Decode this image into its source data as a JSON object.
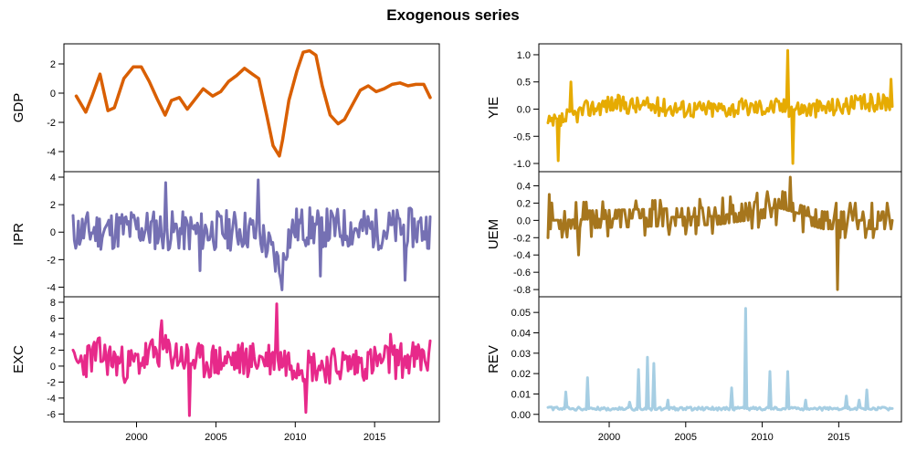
{
  "title": "Exogenous series",
  "chart_data": {
    "type": "line",
    "title": "Exogenous series",
    "x_ticks": [
      2000,
      2005,
      2010,
      2015
    ],
    "xlim": [
      1996,
      2018.5
    ],
    "grid": false,
    "series": [
      {
        "name": "GDP",
        "color": "#D95F02",
        "ylim": [
          -5,
          3
        ],
        "yticks": [
          -4,
          -2,
          0,
          2
        ],
        "frequency": "smooth",
        "x": [
          1996.2,
          1996.8,
          1997.2,
          1997.7,
          1998.2,
          1998.6,
          1999.2,
          1999.8,
          2000.3,
          2000.8,
          2001.3,
          2001.8,
          2002.2,
          2002.7,
          2003.2,
          2003.7,
          2004.2,
          2004.8,
          2005.3,
          2005.8,
          2006.3,
          2006.8,
          2007.3,
          2007.7,
          2008.2,
          2008.6,
          2009.0,
          2009.2,
          2009.6,
          2010.1,
          2010.5,
          2010.9,
          2011.3,
          2011.7,
          2012.2,
          2012.7,
          2013.1,
          2013.6,
          2014.1,
          2014.6,
          2015.1,
          2015.6,
          2016.1,
          2016.6,
          2017.1,
          2017.6,
          2018.1,
          2018.5
        ],
        "y": [
          -0.2,
          -1.3,
          -0.2,
          1.3,
          -1.2,
          -1.0,
          1.0,
          1.8,
          1.8,
          0.8,
          -0.4,
          -1.5,
          -0.5,
          -0.3,
          -1.1,
          -0.4,
          0.3,
          -0.2,
          0.1,
          0.8,
          1.2,
          1.7,
          1.3,
          1.0,
          -1.5,
          -3.6,
          -4.3,
          -3.2,
          -0.5,
          1.5,
          2.8,
          2.9,
          2.6,
          0.5,
          -1.5,
          -2.1,
          -1.8,
          -0.8,
          0.2,
          0.5,
          0.1,
          0.3,
          0.6,
          0.7,
          0.5,
          0.6,
          0.6,
          -0.3
        ]
      },
      {
        "name": "IPR",
        "color": "#7570B3",
        "ylim": [
          -4.3,
          4
        ],
        "yticks": [
          -4,
          -2,
          0,
          2,
          4
        ],
        "frequency": "monthly",
        "seed": 11,
        "anchors": [
          [
            1996.0,
            0.0
          ],
          [
            2000.0,
            0.3
          ],
          [
            2003.0,
            0.0
          ],
          [
            2007.0,
            0.2
          ],
          [
            2008.0,
            -0.5
          ],
          [
            2008.5,
            -1.5
          ],
          [
            2009.0,
            -2.5
          ],
          [
            2009.5,
            -0.5
          ],
          [
            2010.0,
            0.4
          ],
          [
            2015.0,
            0.2
          ],
          [
            2018.5,
            0.3
          ]
        ],
        "amplitude": 1.5,
        "spikes": [
          [
            2001.8,
            3.6
          ],
          [
            2007.7,
            3.8
          ],
          [
            2009.2,
            -4.2
          ],
          [
            2016.9,
            -3.5
          ],
          [
            2004.0,
            -2.8
          ],
          [
            2011.6,
            -3.2
          ]
        ]
      },
      {
        "name": "EXC",
        "color": "#E7298A",
        "ylim": [
          -6.3,
          8
        ],
        "yticks": [
          -6,
          -4,
          -2,
          0,
          2,
          4,
          6,
          8
        ],
        "frequency": "monthly",
        "seed": 23,
        "anchors": [
          [
            1996.0,
            0.0
          ],
          [
            1997.5,
            1.5
          ],
          [
            1999.5,
            0.0
          ],
          [
            2001.5,
            2.0
          ],
          [
            2004.0,
            0.5
          ],
          [
            2008.5,
            1.0
          ],
          [
            2011.5,
            0.0
          ],
          [
            2015.0,
            0.5
          ],
          [
            2018.5,
            1.0
          ]
        ],
        "amplitude": 2.3,
        "spikes": [
          [
            2008.8,
            7.8
          ],
          [
            2003.3,
            -6.2
          ],
          [
            2010.7,
            -5.8
          ],
          [
            2001.6,
            5.7
          ],
          [
            2016.0,
            4.0
          ]
        ]
      },
      {
        "name": "YIE",
        "color": "#E6AB02",
        "ylim": [
          -1.05,
          1.1
        ],
        "yticks": [
          -1.0,
          -0.5,
          0.0,
          0.5,
          1.0
        ],
        "frequency": "monthly",
        "seed": 37,
        "anchors": [
          [
            1996.0,
            -0.3
          ],
          [
            1997.0,
            -0.2
          ],
          [
            1998.5,
            0.0
          ],
          [
            2000.0,
            0.1
          ],
          [
            2006.0,
            0.0
          ],
          [
            2011.0,
            0.05
          ],
          [
            2013.0,
            0.0
          ],
          [
            2018.5,
            0.15
          ]
        ],
        "amplitude": 0.17,
        "spikes": [
          [
            1996.7,
            -0.95
          ],
          [
            1997.5,
            0.5
          ],
          [
            2011.7,
            1.08
          ],
          [
            2012.0,
            -1.0
          ],
          [
            2018.4,
            0.55
          ]
        ]
      },
      {
        "name": "UEM",
        "color": "#A6761D",
        "ylim": [
          -0.82,
          0.5
        ],
        "yticks": [
          -0.8,
          -0.6,
          -0.4,
          -0.2,
          0.0,
          0.2,
          0.4
        ],
        "frequency": "monthly-step",
        "seed": 53,
        "anchors": [
          [
            1996.0,
            0.0
          ],
          [
            2007.0,
            0.05
          ],
          [
            2011.0,
            0.15
          ],
          [
            2013.0,
            0.05
          ],
          [
            2014.0,
            0.0
          ],
          [
            2018.5,
            0.0
          ]
        ],
        "amplitude": 0.17,
        "spikes": [
          [
            2011.8,
            0.5
          ],
          [
            2014.9,
            -0.8
          ],
          [
            1996.1,
            0.3
          ],
          [
            1998.0,
            -0.4
          ]
        ]
      },
      {
        "name": "REV",
        "color": "#A6CEE3",
        "ylim": [
          -0.001,
          0.055
        ],
        "yticks": [
          0.0,
          0.01,
          0.02,
          0.03,
          0.04,
          0.05
        ],
        "frequency": "monthly-positive",
        "seed": 71,
        "anchors": [
          [
            1996.0,
            0.002
          ],
          [
            2018.5,
            0.002
          ]
        ],
        "amplitude": 0.002,
        "spikes": [
          [
            1997.2,
            0.011
          ],
          [
            1998.6,
            0.018
          ],
          [
            2001.3,
            0.006
          ],
          [
            2001.9,
            0.022
          ],
          [
            2002.5,
            0.028
          ],
          [
            2002.9,
            0.025
          ],
          [
            2003.8,
            0.007
          ],
          [
            2008.0,
            0.013
          ],
          [
            2008.9,
            0.052
          ],
          [
            2010.5,
            0.021
          ],
          [
            2011.7,
            0.021
          ],
          [
            2012.8,
            0.007
          ],
          [
            2015.5,
            0.009
          ],
          [
            2016.3,
            0.007
          ],
          [
            2016.8,
            0.012
          ]
        ]
      }
    ]
  }
}
